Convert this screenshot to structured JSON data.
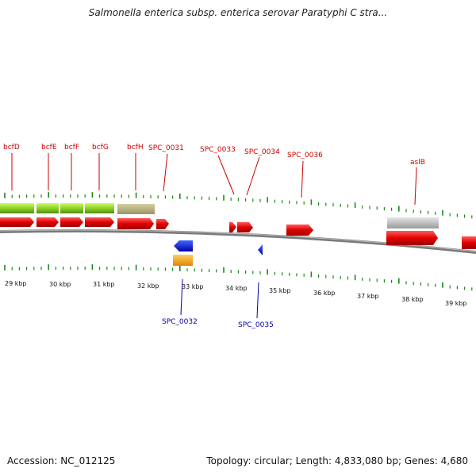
{
  "title": "Salmonella enterica subsp. enterica serovar Paratyphi C stra...",
  "footer": {
    "accession": "Accession: NC_012125",
    "summary": "Topology: circular; Length: 4,833,080 bp; Genes: 4,680"
  },
  "colors": {
    "forward_label": "#cc0000",
    "reverse_label": "#0000aa",
    "tick": "#1a8a1a",
    "backbone": "#777777"
  },
  "forward_gene_labels": [
    "bcfD",
    "bcfE",
    "bcfF",
    "bcfG",
    "bcfH",
    "SPC_0031",
    "SPC_0033",
    "SPC_0034",
    "SPC_0036",
    "aslB"
  ],
  "reverse_gene_labels": [
    "SPC_0032",
    "SPC_0035"
  ],
  "scale_labels": [
    "29 kbp",
    "30 kbp",
    "31 kbp",
    "32 kbp",
    "33 kbp",
    "34 kbp",
    "35 kbp",
    "36 kbp",
    "37 kbp",
    "38 kbp",
    "39 kbp"
  ]
}
